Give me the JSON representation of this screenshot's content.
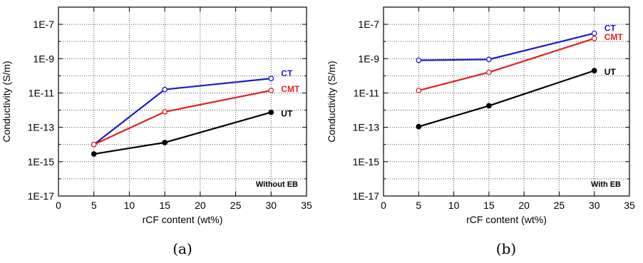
{
  "chart_data": [
    {
      "type": "line",
      "caption": "(a)",
      "annotation": "Without EB",
      "xlabel": "rCF content (wt%)",
      "ylabel": "Conductivity (S/m)",
      "xlim": [
        0,
        35
      ],
      "ylim_log10": [
        -17,
        -6
      ],
      "y_scale": "log",
      "x_ticks": [
        0,
        5,
        10,
        15,
        20,
        25,
        30,
        35
      ],
      "y_ticks": [
        "1E-17",
        "1E-15",
        "1E-13",
        "1E-11",
        "1E-9",
        "1E-7"
      ],
      "y_tick_exponents": [
        -17,
        -15,
        -13,
        -11,
        -9,
        -7
      ],
      "grid": "dotted horizontal and vertical",
      "x": [
        5,
        15,
        30
      ],
      "series": [
        {
          "name": "CT",
          "color": "#1c1cc8",
          "marker": "open-circle",
          "values": [
            1e-14,
            1.6e-11,
            7e-11
          ]
        },
        {
          "name": "CMT",
          "color": "#e02020",
          "marker": "open-circle",
          "values": [
            1e-14,
            8e-13,
            1.4e-11
          ]
        },
        {
          "name": "UT",
          "color": "#000000",
          "marker": "filled-circle",
          "values": [
            2.8e-15,
            1.3e-14,
            7.5e-13
          ]
        }
      ]
    },
    {
      "type": "line",
      "caption": "(b)",
      "annotation": "With EB",
      "xlabel": "rCF content (wt%)",
      "ylabel": "Conductivity (S/m)",
      "xlim": [
        0,
        35
      ],
      "ylim_log10": [
        -17,
        -6
      ],
      "y_scale": "log",
      "x_ticks": [
        0,
        5,
        10,
        15,
        20,
        25,
        30,
        35
      ],
      "y_ticks": [
        "1E-17",
        "1E-15",
        "1E-13",
        "1E-11",
        "1E-9",
        "1E-7"
      ],
      "y_tick_exponents": [
        -17,
        -15,
        -13,
        -11,
        -9,
        -7
      ],
      "grid": "dotted horizontal and vertical",
      "x": [
        5,
        15,
        30
      ],
      "series": [
        {
          "name": "CT",
          "color": "#1c1cc8",
          "marker": "open-circle",
          "values": [
            8e-10,
            9e-10,
            3e-08
          ]
        },
        {
          "name": "CMT",
          "color": "#e02020",
          "marker": "open-circle",
          "values": [
            1.4e-11,
            1.6e-10,
            1.5e-08
          ]
        },
        {
          "name": "UT",
          "color": "#000000",
          "marker": "filled-circle",
          "values": [
            1.1e-13,
            1.8e-12,
            2e-10
          ]
        }
      ]
    }
  ]
}
